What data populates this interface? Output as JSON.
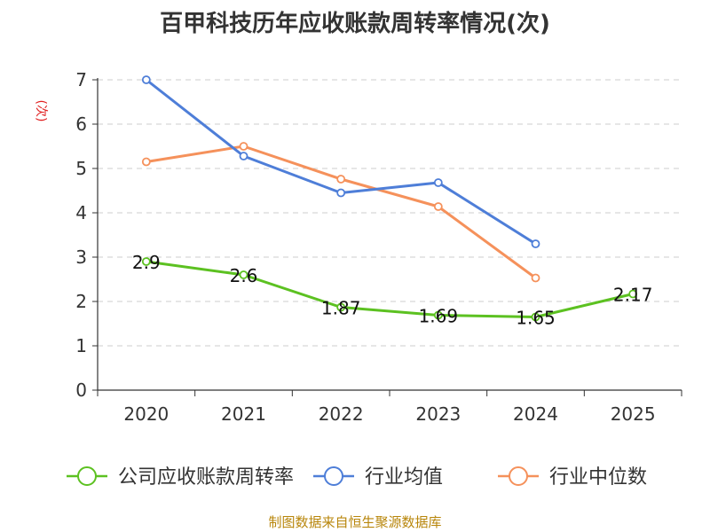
{
  "chart_data": {
    "type": "line",
    "title": "百甲科技历年应收账款周转率情况(次)",
    "ylabel": "(次)",
    "xlabel": "",
    "categories": [
      "2020",
      "2021",
      "2022",
      "2023",
      "2024",
      "2025"
    ],
    "ylim": [
      0,
      7
    ],
    "yticks": [
      "0",
      "1",
      "2",
      "3",
      "4",
      "5",
      "6",
      "7"
    ],
    "grid": true,
    "legend_position": "bottom",
    "series": [
      {
        "name": "公司应收账款周转率",
        "color": "#5cc121",
        "values": [
          2.9,
          2.6,
          1.87,
          1.69,
          1.65,
          2.17
        ],
        "labels": [
          "2.9",
          "2.6",
          "1.87",
          "1.69",
          "1.65",
          "2.17"
        ]
      },
      {
        "name": "行业均值",
        "color": "#4e7ed8",
        "values": [
          7.0,
          5.28,
          4.45,
          4.68,
          3.3,
          null
        ]
      },
      {
        "name": "行业中位数",
        "color": "#f5915b",
        "values": [
          5.15,
          5.5,
          4.76,
          4.14,
          2.53,
          null
        ]
      }
    ]
  },
  "source": "制图数据来自恒生聚源数据库"
}
